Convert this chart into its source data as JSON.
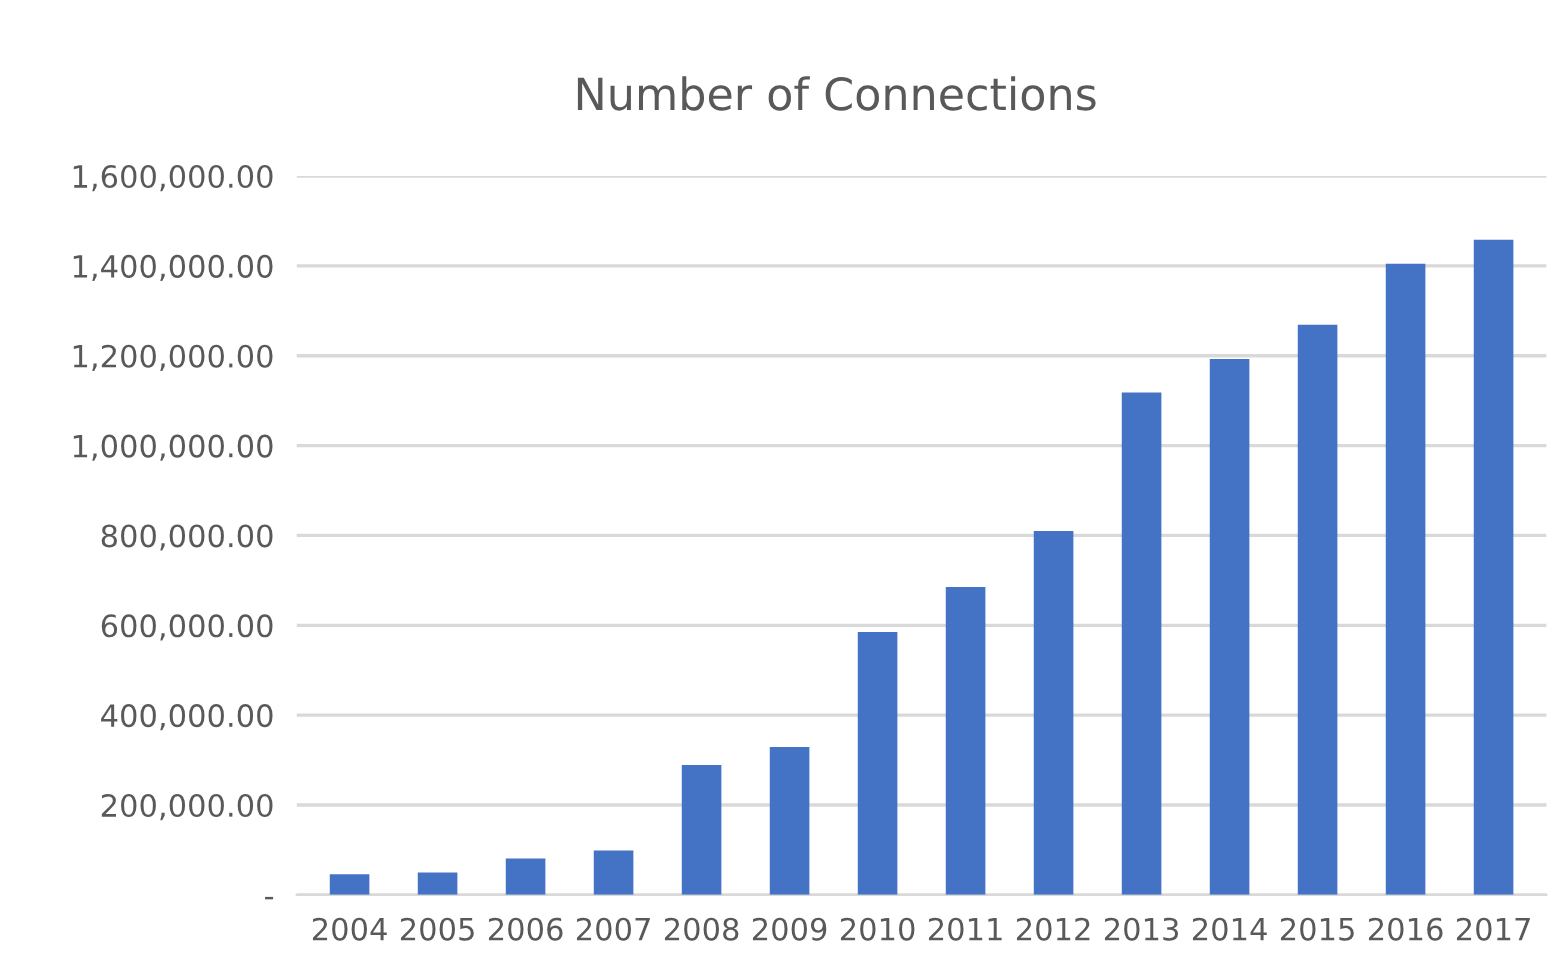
{
  "chart_data": {
    "type": "bar",
    "title": "Number of Connections",
    "categories": [
      "2004",
      "2005",
      "2006",
      "2007",
      "2008",
      "2009",
      "2010",
      "2011",
      "2012",
      "2013",
      "2014",
      "2015",
      "2016",
      "2017"
    ],
    "values": [
      46000,
      50000,
      81000,
      99000,
      289000,
      329000,
      585000,
      685000,
      810000,
      1118000,
      1193000,
      1269000,
      1405000,
      1458000
    ],
    "color": "#4472c4",
    "ylim": [
      0,
      1600000
    ],
    "yticks": [
      {
        "value": 0,
        "label": "-"
      },
      {
        "value": 200000,
        "label": "200,000.00"
      },
      {
        "value": 400000,
        "label": "400,000.00"
      },
      {
        "value": 600000,
        "label": "600,000.00"
      },
      {
        "value": 800000,
        "label": "800,000.00"
      },
      {
        "value": 1000000,
        "label": "1,000,000.00"
      },
      {
        "value": 1200000,
        "label": "1,200,000.00"
      },
      {
        "value": 1400000,
        "label": "1,400,000.00"
      },
      {
        "value": 1600000,
        "label": "1,600,000.00"
      }
    ],
    "grid": "y",
    "legend": false
  }
}
